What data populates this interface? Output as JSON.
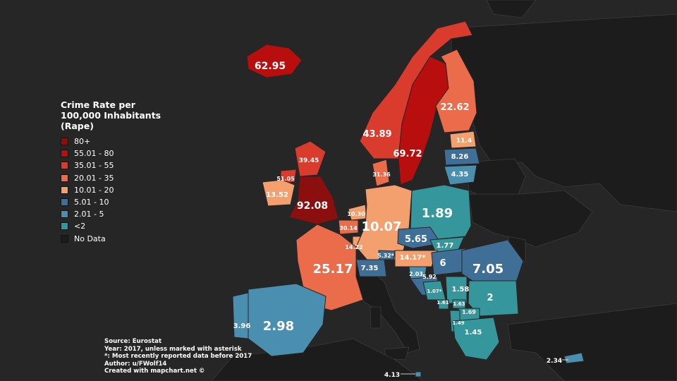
{
  "legend": {
    "title": "Crime Rate per 100,000 Inhabitants (Rape)",
    "classes": [
      {
        "label": "80+",
        "color": "#8b0f0f"
      },
      {
        "label": "55.01 - 80",
        "color": "#b80e0e"
      },
      {
        "label": "35.01 - 55",
        "color": "#d93b2c"
      },
      {
        "label": "20.01 - 35",
        "color": "#ea6c4b"
      },
      {
        "label": "10.01 - 20",
        "color": "#f4a06e"
      },
      {
        "label": "5.01 - 10",
        "color": "#3f6e97"
      },
      {
        "label": "2.01 - 5",
        "color": "#4a8fb0"
      },
      {
        "label": "<2",
        "color": "#35979b"
      },
      {
        "label": "No Data",
        "color": "#1c1c1c"
      }
    ]
  },
  "source": {
    "line1": "Source: Eurostat",
    "line2": "Year: 2017, unless marked with asterisk",
    "line3": "*: Most recently reported data before 2017",
    "line4": "Author: u/FWolf14",
    "line5": "Created with mapchart.net ©"
  },
  "regions": {
    "iceland": {
      "value": "62.95",
      "color": "#b80e0e"
    },
    "norway": {
      "value": "43.89",
      "color": "#d93b2c"
    },
    "sweden": {
      "value": "69.72",
      "color": "#b80e0e"
    },
    "finland": {
      "value": "22.62",
      "color": "#ea6c4b"
    },
    "estonia": {
      "value": "11.4",
      "color": "#f4a06e"
    },
    "latvia": {
      "value": "8.26",
      "color": "#3f6e97"
    },
    "lithuania": {
      "value": "4.35",
      "color": "#4a8fb0"
    },
    "denmark": {
      "value": "31.36",
      "color": "#ea6c4b"
    },
    "scotland": {
      "value": "39.45",
      "color": "#d93b2c"
    },
    "northern_ireland": {
      "value": "51.05",
      "color": "#d93b2c"
    },
    "ireland": {
      "value": "13.52",
      "color": "#f4a06e"
    },
    "england_wales": {
      "value": "92.08",
      "color": "#8b0f0f"
    },
    "netherlands": {
      "value": "10.30",
      "color": "#f4a06e"
    },
    "belgium": {
      "value": "30.14",
      "color": "#ea6c4b"
    },
    "luxembourg": {
      "value": "14.22",
      "color": "#f4a06e"
    },
    "germany": {
      "value": "10.07",
      "color": "#f4a06e"
    },
    "poland": {
      "value": "1.89",
      "color": "#35979b"
    },
    "czechia": {
      "value": "5.65",
      "color": "#3f6e97"
    },
    "slovakia": {
      "value": "1.77",
      "color": "#35979b"
    },
    "austria": {
      "value": "14.17*",
      "color": "#f4a06e"
    },
    "liechtenstein": {
      "value": "5.32*",
      "color": "#3f6e97"
    },
    "switzerland": {
      "value": "7.35",
      "color": "#3f6e97"
    },
    "france": {
      "value": "25.17",
      "color": "#ea6c4b"
    },
    "hungary": {
      "value": "6",
      "color": "#3f6e97"
    },
    "romania": {
      "value": "7.05",
      "color": "#3f6e97"
    },
    "slovenia": {
      "value": "2.03",
      "color": "#4a8fb0"
    },
    "croatia": {
      "value": "5.92",
      "color": "#3f6e97"
    },
    "bosnia": {
      "value": "1.07*",
      "color": "#35979b"
    },
    "serbia": {
      "value": "1.58",
      "color": "#35979b"
    },
    "montenegro": {
      "value": "1.61",
      "color": "#35979b"
    },
    "kosovo": {
      "value": "1.63",
      "color": "#35979b"
    },
    "bulgaria": {
      "value": "2",
      "color": "#35979b"
    },
    "north_macedonia": {
      "value": "1.69",
      "color": "#35979b"
    },
    "albania": {
      "value": "1.49",
      "color": "#35979b"
    },
    "greece": {
      "value": "1.45",
      "color": "#35979b"
    },
    "portugal": {
      "value": "3.96",
      "color": "#4a8fb0"
    },
    "spain": {
      "value": "2.98",
      "color": "#4a8fb0"
    },
    "malta": {
      "value": "4.13",
      "color": "#4a8fb0"
    },
    "cyprus": {
      "value": "2.34",
      "color": "#4a8fb0"
    }
  },
  "no_data_regions": {
    "color": "#1c1c1c"
  }
}
